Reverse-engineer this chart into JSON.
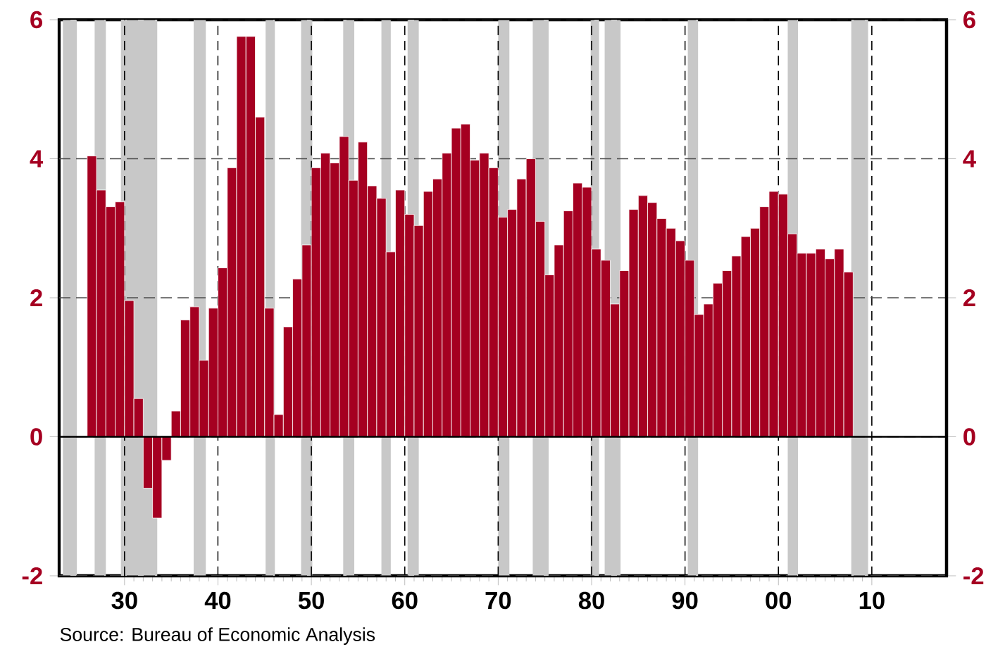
{
  "chart_data": {
    "type": "bar",
    "annotations": [
      "Source:  Bureau of Economic Analysis"
    ],
    "x": [
      1926,
      1927,
      1928,
      1929,
      1930,
      1931,
      1932,
      1933,
      1934,
      1935,
      1936,
      1937,
      1938,
      1939,
      1940,
      1941,
      1942,
      1943,
      1944,
      1945,
      1946,
      1947,
      1948,
      1949,
      1950,
      1951,
      1952,
      1953,
      1954,
      1955,
      1956,
      1957,
      1958,
      1959,
      1960,
      1961,
      1962,
      1963,
      1964,
      1965,
      1966,
      1967,
      1968,
      1969,
      1970,
      1971,
      1972,
      1973,
      1974,
      1975,
      1976,
      1977,
      1978,
      1979,
      1980,
      1981,
      1982,
      1983,
      1984,
      1985,
      1986,
      1987,
      1988,
      1989,
      1990,
      1991,
      1992,
      1993,
      1994,
      1995,
      1996,
      1997,
      1998,
      1999,
      2000,
      2001,
      2002,
      2003,
      2004,
      2005,
      2006,
      2007
    ],
    "values": [
      4.04,
      3.55,
      3.31,
      3.38,
      1.96,
      0.55,
      -0.74,
      -1.17,
      -0.34,
      0.37,
      1.68,
      1.87,
      1.1,
      1.85,
      2.43,
      3.87,
      5.76,
      5.76,
      4.6,
      1.85,
      0.32,
      1.58,
      2.27,
      2.76,
      3.87,
      4.08,
      3.94,
      4.32,
      3.69,
      4.24,
      3.61,
      3.43,
      2.66,
      3.55,
      3.2,
      3.04,
      3.53,
      3.71,
      4.08,
      4.44,
      4.5,
      3.98,
      4.08,
      3.87,
      3.16,
      3.27,
      3.71,
      4.0,
      3.1,
      2.33,
      2.76,
      3.25,
      3.65,
      3.59,
      2.7,
      2.54,
      1.91,
      2.39,
      3.27,
      3.47,
      3.37,
      3.14,
      3.0,
      2.82,
      2.54,
      1.76,
      1.91,
      2.21,
      2.39,
      2.6,
      2.88,
      3.0,
      3.31,
      3.53,
      3.49,
      2.92,
      2.64,
      2.64,
      2.7,
      2.56,
      2.7,
      2.37
    ],
    "color": "#a50021",
    "xlim": [
      1923,
      2018
    ],
    "xticks": [
      {
        "value": 1930,
        "label": "30"
      },
      {
        "value": 1940,
        "label": "40"
      },
      {
        "value": 1950,
        "label": "50"
      },
      {
        "value": 1960,
        "label": "60"
      },
      {
        "value": 1970,
        "label": "70"
      },
      {
        "value": 1980,
        "label": "80"
      },
      {
        "value": 1990,
        "label": "90"
      },
      {
        "value": 2000,
        "label": "00"
      },
      {
        "value": 2010,
        "label": "10"
      }
    ],
    "ylim": [
      -2,
      6
    ],
    "yticks": [
      -2,
      0,
      2,
      4,
      6
    ],
    "y2lim": [
      -2,
      6
    ],
    "y2ticks": [
      -2,
      0,
      2,
      4,
      6
    ],
    "grid": true,
    "ref_lines": [
      {
        "axis": "y",
        "value": 0,
        "color": "#000000",
        "line_style": "solid"
      }
    ],
    "bands": [
      {
        "axis": "x",
        "from": 1923.4,
        "to": 1924.9,
        "color": "#c8c8c8"
      },
      {
        "axis": "x",
        "from": 1926.8,
        "to": 1928.0,
        "color": "#c8c8c8"
      },
      {
        "axis": "x",
        "from": 1929.6,
        "to": 1933.5,
        "color": "#c8c8c8"
      },
      {
        "axis": "x",
        "from": 1937.4,
        "to": 1938.7,
        "color": "#c8c8c8"
      },
      {
        "axis": "x",
        "from": 1945.1,
        "to": 1946.1,
        "color": "#c8c8c8"
      },
      {
        "axis": "x",
        "from": 1948.9,
        "to": 1950.1,
        "color": "#c8c8c8"
      },
      {
        "axis": "x",
        "from": 1953.4,
        "to": 1954.6,
        "color": "#c8c8c8"
      },
      {
        "axis": "x",
        "from": 1957.5,
        "to": 1958.5,
        "color": "#c8c8c8"
      },
      {
        "axis": "x",
        "from": 1960.3,
        "to": 1961.5,
        "color": "#c8c8c8"
      },
      {
        "axis": "x",
        "from": 1970.0,
        "to": 1971.2,
        "color": "#c8c8c8"
      },
      {
        "axis": "x",
        "from": 1973.7,
        "to": 1975.4,
        "color": "#c8c8c8"
      },
      {
        "axis": "x",
        "from": 1979.9,
        "to": 1980.8,
        "color": "#c8c8c8"
      },
      {
        "axis": "x",
        "from": 1981.4,
        "to": 1983.1,
        "color": "#c8c8c8"
      },
      {
        "axis": "x",
        "from": 1990.3,
        "to": 1991.4,
        "color": "#c8c8c8"
      },
      {
        "axis": "x",
        "from": 2001.0,
        "to": 2002.1,
        "color": "#c8c8c8"
      },
      {
        "axis": "x",
        "from": 2007.8,
        "to": 2009.6,
        "color": "#c8c8c8"
      }
    ]
  }
}
